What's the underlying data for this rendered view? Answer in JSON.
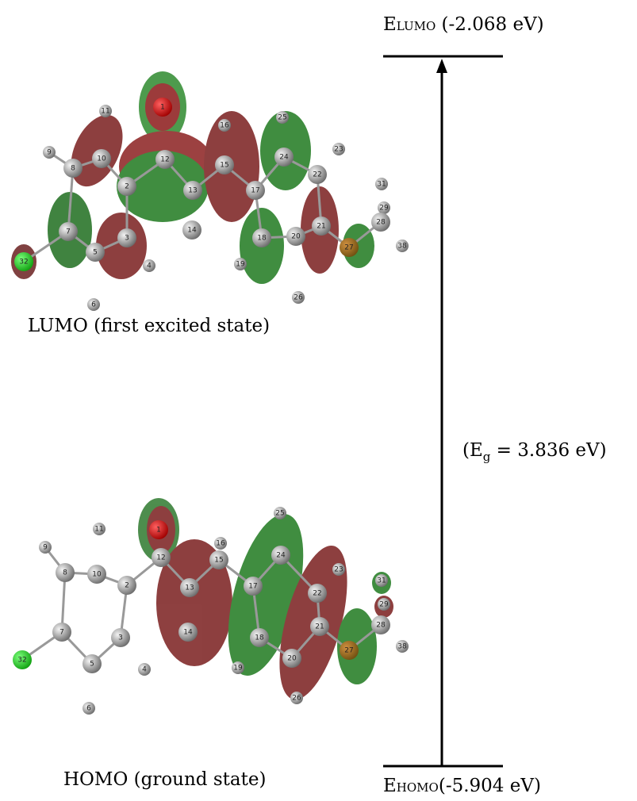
{
  "lumo": {
    "caption": "LUMO (first excited state)",
    "atoms": [
      "11",
      "9",
      "8",
      "10",
      "12",
      "2",
      "13",
      "14",
      "7",
      "3",
      "5",
      "4",
      "6",
      "32",
      "15",
      "16",
      "17",
      "24",
      "25",
      "22",
      "23",
      "18",
      "19",
      "20",
      "26",
      "21",
      "27",
      "31",
      "29",
      "28",
      "38",
      "1"
    ]
  },
  "homo": {
    "caption": "HOMO (ground state)",
    "atoms": [
      "11",
      "9",
      "8",
      "10",
      "12",
      "2",
      "16",
      "15",
      "13",
      "14",
      "7",
      "3",
      "5",
      "4",
      "6",
      "32",
      "1",
      "25",
      "24",
      "17",
      "18",
      "19",
      "22",
      "23",
      "21",
      "20",
      "26",
      "27",
      "31",
      "29",
      "28",
      "38"
    ]
  },
  "lumo_level": {
    "symbol": "E",
    "subscript": "LUMO",
    "value": " (-2.068 eV)"
  },
  "homo_level": {
    "symbol": "E",
    "subscript": "HOMO",
    "value": "(-5.904 eV)"
  },
  "gap": {
    "open": "(E",
    "subscript": "g",
    "rest": " = 3.836 eV)"
  }
}
